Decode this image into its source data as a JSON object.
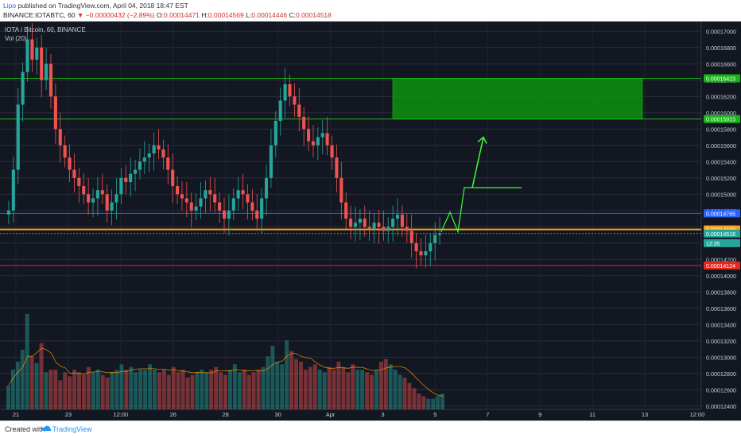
{
  "header": {
    "author": "Lipo",
    "published": " published on TradingView.com, April 04, 2018 18:47 EST",
    "symbol": "BINANCE:IOTABTC, 60",
    "change": "▼ −0.00000432 (−2.89%)",
    "ohlc": [
      {
        "k": "O:",
        "v": "0.00014471"
      },
      {
        "k": "H:",
        "v": "0.00014569"
      },
      {
        "k": "L:",
        "v": "0.00014446"
      },
      {
        "k": "C:",
        "v": "0.00014518"
      }
    ]
  },
  "legend": {
    "title": "IOTA / Bitcoin, 60, BINANCE",
    "vol": "Vol (20)"
  },
  "footer": {
    "created": "Created with",
    "brand": "TradingView"
  },
  "colors": {
    "up": "#26a69a",
    "down": "#ef5350",
    "zone": "#15b515",
    "support": "#f7a21b",
    "resist_blue": "#2962ff",
    "low_red": "#e5271e",
    "arrow": "#3cff33"
  },
  "chart_data": {
    "type": "candlestick",
    "ylim": [
      0.0001236,
      0.0001712
    ],
    "x_ticks": [
      "21",
      "23",
      "12:00",
      "26",
      "28",
      "30",
      "Apr",
      "3",
      "5",
      "7",
      "9",
      "11",
      "13",
      "12:00"
    ],
    "y_ticks": [
      "0.00017000",
      "0.00016800",
      "0.00016600",
      "0.00016400",
      "0.00016200",
      "0.00016000",
      "0.00015800",
      "0.00015600",
      "0.00015400",
      "0.00015200",
      "0.00015000",
      "0.00014800",
      "0.00014600",
      "0.00014400",
      "0.00014200",
      "0.00014000",
      "0.00013800",
      "0.00013600",
      "0.00013400",
      "0.00013200",
      "0.00013000",
      "0.00012800",
      "0.00012600",
      "0.00012400"
    ],
    "price_labels": [
      {
        "name": "zone-top",
        "text": "0.00016423",
        "value": 0.00016423,
        "color": "#15b515"
      },
      {
        "name": "zone-bottom",
        "text": "0.00015923",
        "value": 0.00015923,
        "color": "#15b515"
      },
      {
        "name": "resistance-blue",
        "text": "0.00014765",
        "value": 0.00014765,
        "color": "#2962ff"
      },
      {
        "name": "support-orange",
        "text": "0.00014568",
        "value": 0.00014568,
        "color": "#f7a21b"
      },
      {
        "name": "last-price",
        "text": "0.00014518",
        "value": 0.00014518,
        "color": "#26a69a"
      },
      {
        "name": "countdown",
        "text": "12:35",
        "value": 0.000144,
        "color": "#26a69a"
      },
      {
        "name": "low-red",
        "text": "0.00014124",
        "value": 0.00014124,
        "color": "#e5271e"
      }
    ],
    "target_zone": {
      "top": 0.00016423,
      "bottom": 0.00015923
    },
    "horizontal_lines": [
      {
        "value": 0.00016423,
        "color": "#15b515"
      },
      {
        "value": 0.00015923,
        "color": "#15b515"
      },
      {
        "value": 0.00014765,
        "color": "#2962ff"
      },
      {
        "value": 0.00014568,
        "color": "#f7a21b"
      },
      {
        "value": 0.00014124,
        "color": "#e5271e"
      }
    ],
    "projection_path": [
      0.0001454,
      0.0001478,
      0.0001454,
      0.0001508,
      0.0001508
    ],
    "arrow_end": 0.000157,
    "candles_close": [
      0.000148,
      0.000153,
      0.000161,
      0.000165,
      0.000169,
      0.0001665,
      0.000168,
      0.000164,
      0.000166,
      0.000162,
      0.000158,
      0.000156,
      0.0001545,
      0.000153,
      0.000152,
      0.000151,
      0.00015,
      0.000149,
      0.0001495,
      0.0001505,
      0.00015,
      0.000148,
      0.000149,
      0.00015,
      0.000152,
      0.0001515,
      0.0001525,
      0.000153,
      0.000154,
      0.0001545,
      0.000155,
      0.000156,
      0.0001555,
      0.0001545,
      0.000153,
      0.000151,
      0.00015,
      0.0001495,
      0.000149,
      0.000148,
      0.0001485,
      0.0001495,
      0.0001505,
      0.00015,
      0.000149,
      0.000148,
      0.000147,
      0.000148,
      0.0001495,
      0.0001505,
      0.00015,
      0.000149,
      0.000148,
      0.000147,
      0.0001495,
      0.000152,
      0.000156,
      0.000159,
      0.0001615,
      0.0001635,
      0.000162,
      0.000161,
      0.0001595,
      0.000158,
      0.0001565,
      0.000156,
      0.000157,
      0.0001575,
      0.000156,
      0.0001545,
      0.000152,
      0.000149,
      0.000147,
      0.000146,
      0.0001465,
      0.000147,
      0.000146,
      0.0001458,
      0.0001465,
      0.000146,
      0.0001455,
      0.000146,
      0.000147,
      0.0001475,
      0.000146,
      0.0001455,
      0.000144,
      0.000143,
      0.0001425,
      0.000143,
      0.000144,
      0.000145,
      0.0001452
    ],
    "volume": [
      18,
      30,
      36,
      45,
      72,
      40,
      35,
      50,
      28,
      30,
      30,
      22,
      28,
      25,
      30,
      28,
      26,
      32,
      28,
      30,
      26,
      24,
      28,
      30,
      34,
      30,
      32,
      28,
      30,
      30,
      34,
      30,
      28,
      30,
      26,
      32,
      28,
      30,
      24,
      26,
      28,
      30,
      28,
      30,
      32,
      28,
      26,
      30,
      34,
      28,
      30,
      26,
      28,
      30,
      32,
      40,
      48,
      36,
      34,
      52,
      44,
      38,
      36,
      30,
      32,
      34,
      30,
      28,
      32,
      30,
      36,
      32,
      28,
      34,
      30,
      30,
      28,
      26,
      30,
      36,
      38,
      34,
      30,
      26,
      24,
      20,
      16,
      12,
      10,
      8,
      8,
      10,
      12
    ]
  }
}
